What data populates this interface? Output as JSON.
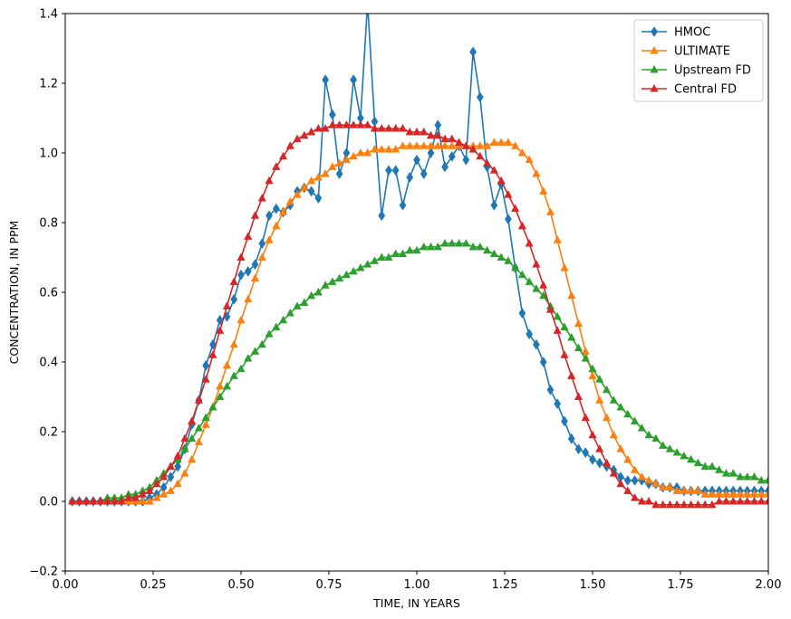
{
  "chart_data": {
    "type": "line",
    "title": "",
    "xlabel": "TIME, IN YEARS",
    "ylabel": "CONCENTRATION, IN PPM",
    "xlim": [
      0.0,
      2.0
    ],
    "ylim": [
      -0.2,
      1.4
    ],
    "xticks": [
      "0.00",
      "0.25",
      "0.50",
      "0.75",
      "1.00",
      "1.25",
      "1.50",
      "1.75",
      "2.00"
    ],
    "yticks": [
      "−0.2",
      "0.0",
      "0.2",
      "0.4",
      "0.6",
      "0.8",
      "1.0",
      "1.2",
      "1.4"
    ],
    "grid": false,
    "legend_position": "top-right",
    "series": [
      {
        "name": "HMOC",
        "color": "#1f77b4",
        "marker": "diamond",
        "x": [
          0.02,
          0.04,
          0.06,
          0.08,
          0.1,
          0.12,
          0.14,
          0.16,
          0.18,
          0.2,
          0.22,
          0.24,
          0.26,
          0.28,
          0.3,
          0.32,
          0.34,
          0.36,
          0.38,
          0.4,
          0.42,
          0.44,
          0.46,
          0.48,
          0.5,
          0.52,
          0.54,
          0.56,
          0.58,
          0.6,
          0.62,
          0.64,
          0.66,
          0.68,
          0.7,
          0.72,
          0.74,
          0.76,
          0.78,
          0.8,
          0.82,
          0.84,
          0.86,
          0.88,
          0.9,
          0.92,
          0.94,
          0.96,
          0.98,
          1.0,
          1.02,
          1.04,
          1.06,
          1.08,
          1.1,
          1.12,
          1.14,
          1.16,
          1.18,
          1.2,
          1.22,
          1.24,
          1.26,
          1.28,
          1.3,
          1.32,
          1.34,
          1.36,
          1.38,
          1.4,
          1.42,
          1.44,
          1.46,
          1.48,
          1.5,
          1.52,
          1.54,
          1.56,
          1.58,
          1.6,
          1.62,
          1.64,
          1.66,
          1.68,
          1.7,
          1.72,
          1.74,
          1.76,
          1.78,
          1.8,
          1.82,
          1.84,
          1.86,
          1.88,
          1.9,
          1.92,
          1.94,
          1.96,
          1.98,
          2.0
        ],
        "y": [
          0.0,
          0.0,
          0.0,
          0.0,
          0.0,
          0.0,
          0.0,
          0.0,
          0.0,
          0.0,
          0.0,
          0.01,
          0.02,
          0.04,
          0.07,
          0.1,
          0.15,
          0.22,
          0.29,
          0.39,
          0.45,
          0.52,
          0.53,
          0.58,
          0.65,
          0.66,
          0.68,
          0.74,
          0.82,
          0.84,
          0.83,
          0.85,
          0.89,
          0.9,
          0.89,
          0.87,
          1.21,
          1.11,
          0.94,
          1.0,
          1.21,
          1.1,
          1.43,
          1.09,
          0.82,
          0.95,
          0.95,
          0.85,
          0.93,
          0.98,
          0.94,
          1.0,
          1.08,
          0.96,
          0.99,
          1.02,
          0.98,
          1.29,
          1.16,
          0.96,
          0.85,
          0.91,
          0.81,
          0.67,
          0.54,
          0.48,
          0.45,
          0.4,
          0.32,
          0.28,
          0.23,
          0.18,
          0.15,
          0.14,
          0.12,
          0.11,
          0.1,
          0.09,
          0.07,
          0.06,
          0.06,
          0.06,
          0.05,
          0.05,
          0.04,
          0.04,
          0.04,
          0.03,
          0.03,
          0.03,
          0.03,
          0.03,
          0.03,
          0.03,
          0.03,
          0.03,
          0.03,
          0.03,
          0.03,
          0.03
        ]
      },
      {
        "name": "ULTIMATE",
        "color": "#ff7f0e",
        "marker": "triangle",
        "x": [
          0.02,
          0.04,
          0.06,
          0.08,
          0.1,
          0.12,
          0.14,
          0.16,
          0.18,
          0.2,
          0.22,
          0.24,
          0.26,
          0.28,
          0.3,
          0.32,
          0.34,
          0.36,
          0.38,
          0.4,
          0.42,
          0.44,
          0.46,
          0.48,
          0.5,
          0.52,
          0.54,
          0.56,
          0.58,
          0.6,
          0.62,
          0.64,
          0.66,
          0.68,
          0.7,
          0.72,
          0.74,
          0.76,
          0.78,
          0.8,
          0.82,
          0.84,
          0.86,
          0.88,
          0.9,
          0.92,
          0.94,
          0.96,
          0.98,
          1.0,
          1.02,
          1.04,
          1.06,
          1.08,
          1.1,
          1.12,
          1.14,
          1.16,
          1.18,
          1.2,
          1.22,
          1.24,
          1.26,
          1.28,
          1.3,
          1.32,
          1.34,
          1.36,
          1.38,
          1.4,
          1.42,
          1.44,
          1.46,
          1.48,
          1.5,
          1.52,
          1.54,
          1.56,
          1.58,
          1.6,
          1.62,
          1.64,
          1.66,
          1.68,
          1.7,
          1.72,
          1.74,
          1.76,
          1.78,
          1.8,
          1.82,
          1.84,
          1.86,
          1.88,
          1.9,
          1.92,
          1.94,
          1.96,
          1.98,
          2.0
        ],
        "y": [
          0.0,
          0.0,
          0.0,
          0.0,
          0.0,
          0.0,
          0.0,
          0.0,
          0.0,
          0.0,
          0.0,
          0.0,
          0.01,
          0.02,
          0.03,
          0.05,
          0.08,
          0.12,
          0.17,
          0.22,
          0.27,
          0.33,
          0.39,
          0.45,
          0.52,
          0.58,
          0.64,
          0.7,
          0.75,
          0.79,
          0.83,
          0.86,
          0.88,
          0.9,
          0.92,
          0.93,
          0.94,
          0.96,
          0.97,
          0.98,
          0.99,
          1.0,
          1.0,
          1.01,
          1.01,
          1.01,
          1.01,
          1.02,
          1.02,
          1.02,
          1.02,
          1.02,
          1.02,
          1.02,
          1.02,
          1.02,
          1.02,
          1.02,
          1.02,
          1.02,
          1.03,
          1.03,
          1.03,
          1.02,
          1.0,
          0.98,
          0.94,
          0.89,
          0.83,
          0.75,
          0.67,
          0.59,
          0.51,
          0.43,
          0.36,
          0.29,
          0.24,
          0.19,
          0.15,
          0.12,
          0.09,
          0.07,
          0.06,
          0.05,
          0.04,
          0.04,
          0.03,
          0.03,
          0.03,
          0.03,
          0.02,
          0.02,
          0.02,
          0.02,
          0.02,
          0.02,
          0.02,
          0.02,
          0.02,
          0.02
        ]
      },
      {
        "name": "Upstream FD",
        "color": "#2ca02c",
        "marker": "triangle",
        "x": [
          0.02,
          0.04,
          0.06,
          0.08,
          0.1,
          0.12,
          0.14,
          0.16,
          0.18,
          0.2,
          0.22,
          0.24,
          0.26,
          0.28,
          0.3,
          0.32,
          0.34,
          0.36,
          0.38,
          0.4,
          0.42,
          0.44,
          0.46,
          0.48,
          0.5,
          0.52,
          0.54,
          0.56,
          0.58,
          0.6,
          0.62,
          0.64,
          0.66,
          0.68,
          0.7,
          0.72,
          0.74,
          0.76,
          0.78,
          0.8,
          0.82,
          0.84,
          0.86,
          0.88,
          0.9,
          0.92,
          0.94,
          0.96,
          0.98,
          1.0,
          1.02,
          1.04,
          1.06,
          1.08,
          1.1,
          1.12,
          1.14,
          1.16,
          1.18,
          1.2,
          1.22,
          1.24,
          1.26,
          1.28,
          1.3,
          1.32,
          1.34,
          1.36,
          1.38,
          1.4,
          1.42,
          1.44,
          1.46,
          1.48,
          1.5,
          1.52,
          1.54,
          1.56,
          1.58,
          1.6,
          1.62,
          1.64,
          1.66,
          1.68,
          1.7,
          1.72,
          1.74,
          1.76,
          1.78,
          1.8,
          1.82,
          1.84,
          1.86,
          1.88,
          1.9,
          1.92,
          1.94,
          1.96,
          1.98,
          2.0
        ],
        "y": [
          0.0,
          0.0,
          0.0,
          0.0,
          0.0,
          0.01,
          0.01,
          0.01,
          0.02,
          0.02,
          0.03,
          0.04,
          0.06,
          0.08,
          0.1,
          0.12,
          0.15,
          0.18,
          0.21,
          0.24,
          0.27,
          0.3,
          0.33,
          0.36,
          0.38,
          0.41,
          0.43,
          0.45,
          0.48,
          0.5,
          0.52,
          0.54,
          0.56,
          0.57,
          0.59,
          0.6,
          0.62,
          0.63,
          0.64,
          0.65,
          0.66,
          0.67,
          0.68,
          0.69,
          0.7,
          0.7,
          0.71,
          0.71,
          0.72,
          0.72,
          0.73,
          0.73,
          0.73,
          0.74,
          0.74,
          0.74,
          0.74,
          0.73,
          0.73,
          0.72,
          0.71,
          0.7,
          0.69,
          0.67,
          0.65,
          0.63,
          0.61,
          0.59,
          0.56,
          0.53,
          0.5,
          0.47,
          0.44,
          0.41,
          0.38,
          0.35,
          0.32,
          0.29,
          0.27,
          0.25,
          0.23,
          0.21,
          0.19,
          0.18,
          0.16,
          0.15,
          0.14,
          0.13,
          0.12,
          0.11,
          0.1,
          0.1,
          0.09,
          0.08,
          0.08,
          0.07,
          0.07,
          0.07,
          0.06,
          0.06
        ]
      },
      {
        "name": "Central FD",
        "color": "#d62728",
        "marker": "triangle",
        "x": [
          0.02,
          0.04,
          0.06,
          0.08,
          0.1,
          0.12,
          0.14,
          0.16,
          0.18,
          0.2,
          0.22,
          0.24,
          0.26,
          0.28,
          0.3,
          0.32,
          0.34,
          0.36,
          0.38,
          0.4,
          0.42,
          0.44,
          0.46,
          0.48,
          0.5,
          0.52,
          0.54,
          0.56,
          0.58,
          0.6,
          0.62,
          0.64,
          0.66,
          0.68,
          0.7,
          0.72,
          0.74,
          0.76,
          0.78,
          0.8,
          0.82,
          0.84,
          0.86,
          0.88,
          0.9,
          0.92,
          0.94,
          0.96,
          0.98,
          1.0,
          1.02,
          1.04,
          1.06,
          1.08,
          1.1,
          1.12,
          1.14,
          1.16,
          1.18,
          1.2,
          1.22,
          1.24,
          1.26,
          1.28,
          1.3,
          1.32,
          1.34,
          1.36,
          1.38,
          1.4,
          1.42,
          1.44,
          1.46,
          1.48,
          1.5,
          1.52,
          1.54,
          1.56,
          1.58,
          1.6,
          1.62,
          1.64,
          1.66,
          1.68,
          1.7,
          1.72,
          1.74,
          1.76,
          1.78,
          1.8,
          1.82,
          1.84,
          1.86,
          1.88,
          1.9,
          1.92,
          1.94,
          1.96,
          1.98,
          2.0
        ],
        "y": [
          0.0,
          0.0,
          0.0,
          0.0,
          0.0,
          0.0,
          0.0,
          0.0,
          0.01,
          0.01,
          0.02,
          0.03,
          0.05,
          0.07,
          0.1,
          0.13,
          0.18,
          0.23,
          0.29,
          0.35,
          0.42,
          0.49,
          0.56,
          0.63,
          0.7,
          0.76,
          0.82,
          0.87,
          0.92,
          0.96,
          0.99,
          1.02,
          1.04,
          1.05,
          1.06,
          1.07,
          1.07,
          1.08,
          1.08,
          1.08,
          1.08,
          1.08,
          1.08,
          1.07,
          1.07,
          1.07,
          1.07,
          1.07,
          1.06,
          1.06,
          1.06,
          1.05,
          1.05,
          1.04,
          1.04,
          1.03,
          1.02,
          1.01,
          0.99,
          0.97,
          0.95,
          0.92,
          0.88,
          0.84,
          0.79,
          0.74,
          0.68,
          0.62,
          0.55,
          0.49,
          0.42,
          0.36,
          0.3,
          0.24,
          0.19,
          0.15,
          0.11,
          0.08,
          0.05,
          0.03,
          0.01,
          0.0,
          0.0,
          -0.01,
          -0.01,
          -0.01,
          -0.01,
          -0.01,
          -0.01,
          -0.01,
          -0.01,
          -0.01,
          0.0,
          0.0,
          0.0,
          0.0,
          0.0,
          0.0,
          0.0,
          0.0
        ]
      }
    ]
  }
}
